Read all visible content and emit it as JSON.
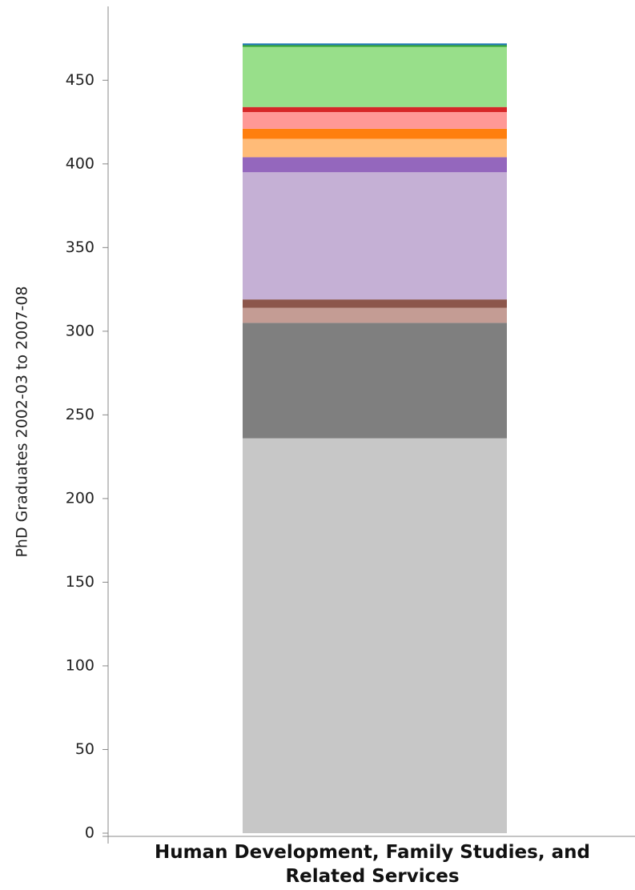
{
  "chart_data": {
    "type": "bar",
    "stacked": true,
    "categories": [
      "Human Development, Family Studies, and Related Services"
    ],
    "ylabel": "PhD Graduates 2002-03 to 2007-08",
    "xlabel": "",
    "ylim": [
      0,
      480
    ],
    "yticks": [
      0,
      50,
      100,
      150,
      200,
      250,
      300,
      350,
      400,
      450
    ],
    "grid": false,
    "legend": "none",
    "series": [
      {
        "color": "#c7c7c7",
        "values": [
          236
        ]
      },
      {
        "color": "#7f7f7f",
        "values": [
          69
        ]
      },
      {
        "color": "#c49c94",
        "values": [
          9
        ]
      },
      {
        "color": "#8c564b",
        "values": [
          5
        ]
      },
      {
        "color": "#c5b0d5",
        "values": [
          76
        ]
      },
      {
        "color": "#9467bd",
        "values": [
          9
        ]
      },
      {
        "color": "#ffbb78",
        "values": [
          11
        ]
      },
      {
        "color": "#ff7f0e",
        "values": [
          6
        ]
      },
      {
        "color": "#ff9896",
        "values": [
          10
        ]
      },
      {
        "color": "#d62728",
        "values": [
          3
        ]
      },
      {
        "color": "#98df8a",
        "values": [
          36
        ]
      },
      {
        "color": "#2ca02c",
        "values": [
          1
        ]
      },
      {
        "color": "#1f77b4",
        "values": [
          1
        ]
      }
    ]
  }
}
